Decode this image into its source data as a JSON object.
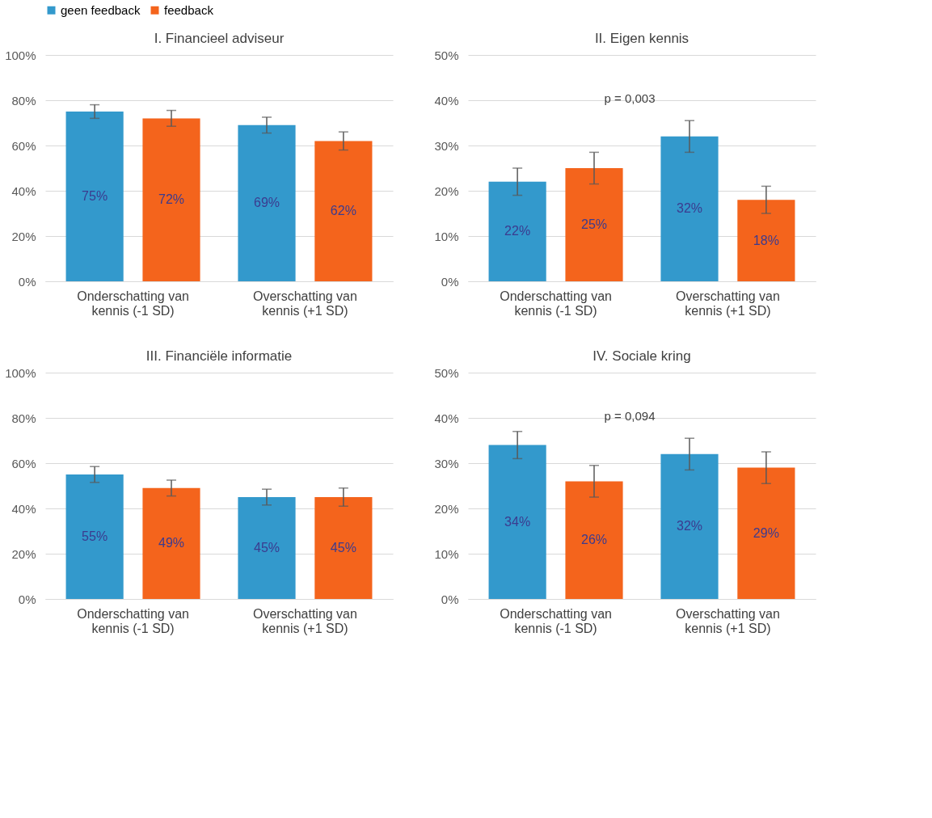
{
  "chart_data": [
    {
      "type": "bar",
      "title": "I. Financieel adviseur",
      "categories": [
        "Onderschatting van kennis (-1 SD)",
        "Overschatting van kennis (+1 SD)"
      ],
      "series": [
        {
          "name": "geen feedback",
          "color": "#3399cc",
          "values": [
            75,
            69
          ],
          "errors": [
            3,
            3.5
          ],
          "value_labels": [
            "75%",
            "69%"
          ]
        },
        {
          "name": "feedback",
          "color": "#f4641c",
          "values": [
            72,
            62
          ],
          "errors": [
            3.5,
            4
          ],
          "value_labels": [
            "72%",
            "62%"
          ]
        }
      ],
      "ylim": [
        0,
        100
      ],
      "yticks": [
        {
          "value": 0,
          "label": "0%"
        },
        {
          "value": 20,
          "label": "20%"
        },
        {
          "value": 40,
          "label": "40%"
        },
        {
          "value": 60,
          "label": "60%"
        },
        {
          "value": 80,
          "label": "80%"
        },
        {
          "value": 100,
          "label": "100%"
        }
      ],
      "grid": "y",
      "legend": "top"
    },
    {
      "type": "bar",
      "title": "II. Eigen kennis",
      "categories": [
        "Onderschatting van kennis (-1 SD)",
        "Overschatting van kennis (+1 SD)"
      ],
      "series": [
        {
          "name": "geen feedback",
          "color": "#3399cc",
          "values": [
            22,
            32
          ],
          "errors": [
            3,
            3.5
          ],
          "value_labels": [
            "22%",
            "32%"
          ]
        },
        {
          "name": "feedback",
          "color": "#f4641c",
          "values": [
            25,
            18
          ],
          "errors": [
            3.5,
            3
          ],
          "value_labels": [
            "25%",
            "18%"
          ]
        }
      ],
      "ylim": [
        0,
        50
      ],
      "yticks": [
        {
          "value": 0,
          "label": "0%"
        },
        {
          "value": 10,
          "label": "10%"
        },
        {
          "value": 20,
          "label": "20%"
        },
        {
          "value": 30,
          "label": "30%"
        },
        {
          "value": 40,
          "label": "40%"
        },
        {
          "value": 50,
          "label": "50%"
        }
      ],
      "grid": "y",
      "legend": "top",
      "annotations": [
        "p = 0,003"
      ]
    },
    {
      "type": "bar",
      "title": "III. Financiële informatie",
      "categories": [
        "Onderschatting van kennis (-1 SD)",
        "Overschatting van kennis (+1 SD)"
      ],
      "series": [
        {
          "name": "geen feedback",
          "color": "#3399cc",
          "values": [
            55,
            45
          ],
          "errors": [
            3.5,
            3.5
          ],
          "value_labels": [
            "55%",
            "45%"
          ]
        },
        {
          "name": "feedback",
          "color": "#f4641c",
          "values": [
            49,
            45
          ],
          "errors": [
            3.5,
            4
          ],
          "value_labels": [
            "49%",
            "45%"
          ]
        }
      ],
      "ylim": [
        0,
        100
      ],
      "yticks": [
        {
          "value": 0,
          "label": "0%"
        },
        {
          "value": 20,
          "label": "20%"
        },
        {
          "value": 40,
          "label": "40%"
        },
        {
          "value": 60,
          "label": "60%"
        },
        {
          "value": 80,
          "label": "80%"
        },
        {
          "value": 100,
          "label": "100%"
        }
      ],
      "grid": "y",
      "legend": "top"
    },
    {
      "type": "bar",
      "title": "IV. Sociale kring",
      "categories": [
        "Onderschatting van kennis (-1 SD)",
        "Overschatting van kennis (+1 SD)"
      ],
      "series": [
        {
          "name": "geen feedback",
          "color": "#3399cc",
          "values": [
            34,
            32
          ],
          "errors": [
            3,
            3.5
          ],
          "value_labels": [
            "34%",
            "32%"
          ]
        },
        {
          "name": "feedback",
          "color": "#f4641c",
          "values": [
            26,
            29
          ],
          "errors": [
            3.5,
            3.5
          ],
          "value_labels": [
            "26%",
            "29%"
          ]
        }
      ],
      "ylim": [
        0,
        50
      ],
      "yticks": [
        {
          "value": 0,
          "label": "0%"
        },
        {
          "value": 10,
          "label": "10%"
        },
        {
          "value": 20,
          "label": "20%"
        },
        {
          "value": 30,
          "label": "30%"
        },
        {
          "value": 40,
          "label": "40%"
        },
        {
          "value": 50,
          "label": "50%"
        }
      ],
      "grid": "y",
      "legend": "top",
      "annotations": [
        "p = 0,094"
      ]
    }
  ]
}
